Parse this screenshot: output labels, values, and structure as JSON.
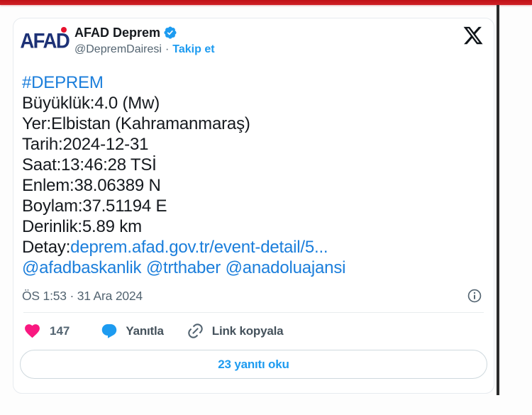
{
  "frame": {
    "top_bar_color": "#c11218",
    "edge_rule_color": "#2b2b2b"
  },
  "tweet": {
    "avatar_logo": {
      "text": "AFAD"
    },
    "author": {
      "name": "AFAD Deprem",
      "handle": "@DepremDairesi",
      "separator": "·",
      "follow_label": "Takip et"
    },
    "body_lines": [
      {
        "segments": [
          {
            "text": "#DEPREM",
            "link": true
          }
        ]
      },
      {
        "segments": [
          {
            "text": "Büyüklük:4.0 (Mw)",
            "link": false
          }
        ]
      },
      {
        "segments": [
          {
            "text": "Yer:Elbistan (Kahramanmaraş)",
            "link": false
          }
        ]
      },
      {
        "segments": [
          {
            "text": "Tarih:2024-12-31",
            "link": false
          }
        ]
      },
      {
        "segments": [
          {
            "text": "Saat:13:46:28 TSİ",
            "link": false
          }
        ]
      },
      {
        "segments": [
          {
            "text": "Enlem:38.06389 N",
            "link": false
          }
        ]
      },
      {
        "segments": [
          {
            "text": "Boylam:37.51194 E",
            "link": false
          }
        ]
      },
      {
        "segments": [
          {
            "text": "Derinlik:5.89 km",
            "link": false
          }
        ]
      },
      {
        "segments": [
          {
            "text": "Detay:",
            "link": false
          },
          {
            "text": "deprem.afad.gov.tr/event-detail/5...",
            "link": true
          }
        ]
      },
      {
        "segments": [
          {
            "text": "@afadbaskanlik",
            "link": true
          },
          {
            "text": " ",
            "link": false
          },
          {
            "text": "@trthaber",
            "link": true
          },
          {
            "text": " ",
            "link": false
          },
          {
            "text": "@anadoluajansi",
            "link": true
          }
        ]
      }
    ],
    "timestamp": "ÖS 1:53 · 31 Ara 2024",
    "actions": {
      "like_count": "147",
      "reply_label": "Yanıtla",
      "copy_link_label": "Link kopyala"
    },
    "read_replies_label": "23 yanıtı oku",
    "colors": {
      "body_link": "#1b7edb",
      "accent_blue": "#1d9bf0",
      "heart_pink": "#f91880",
      "afad_navy": "#1d3176",
      "afad_red": "#e8112d"
    },
    "icons": {
      "x_logo": "X brand mark",
      "verified_badge": "blue scalloped check seal",
      "info": "circled i",
      "heart": "filled heart",
      "reply": "filled speech bubble",
      "copy_link": "chain link"
    }
  }
}
